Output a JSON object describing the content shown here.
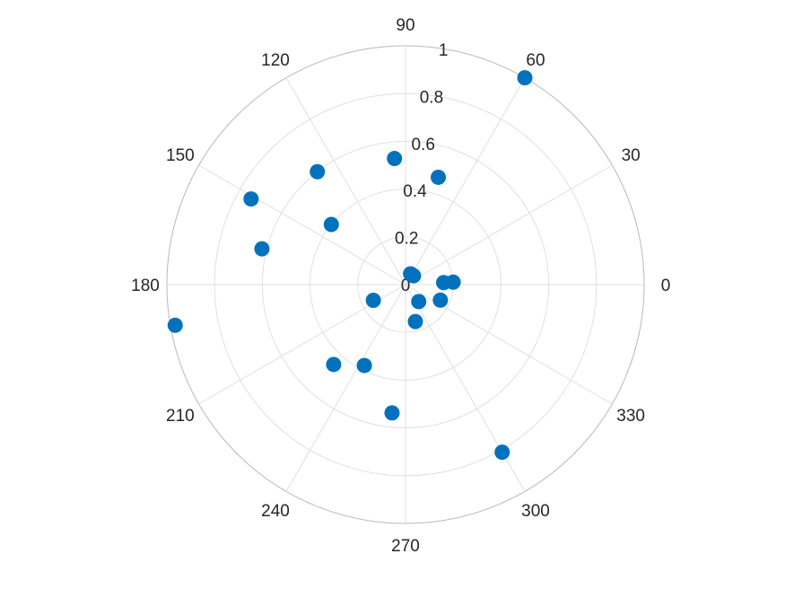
{
  "chart_data": {
    "type": "scatter",
    "projection": "polar",
    "angle_unit": "degrees",
    "theta_ticks": [
      "0",
      "30",
      "60",
      "90",
      "120",
      "150",
      "180",
      "210",
      "240",
      "270",
      "300",
      "330"
    ],
    "r_ticks": [
      "0",
      "0.2",
      "0.4",
      "0.6",
      "0.8",
      "1"
    ],
    "rlim": [
      0,
      1
    ],
    "grid": true,
    "legend": "none",
    "marker_color": "#0072BD",
    "points": [
      {
        "theta": 60,
        "r": 1.0
      },
      {
        "theta": 128,
        "r": 0.6
      },
      {
        "theta": 95,
        "r": 0.53
      },
      {
        "theta": 73,
        "r": 0.47
      },
      {
        "theta": 151,
        "r": 0.74
      },
      {
        "theta": 141,
        "r": 0.4
      },
      {
        "theta": 166,
        "r": 0.62
      },
      {
        "theta": 190,
        "r": 0.98
      },
      {
        "theta": 48,
        "r": 0.05
      },
      {
        "theta": 65,
        "r": 0.05
      },
      {
        "theta": 3,
        "r": 0.2
      },
      {
        "theta": 3,
        "r": 0.16
      },
      {
        "theta": 336,
        "r": 0.16
      },
      {
        "theta": 308,
        "r": 0.09
      },
      {
        "theta": 206,
        "r": 0.15
      },
      {
        "theta": 285,
        "r": 0.16
      },
      {
        "theta": 243,
        "r": 0.38
      },
      {
        "theta": 228,
        "r": 0.45
      },
      {
        "theta": 264,
        "r": 0.54
      },
      {
        "theta": 300,
        "r": 0.81
      }
    ]
  }
}
